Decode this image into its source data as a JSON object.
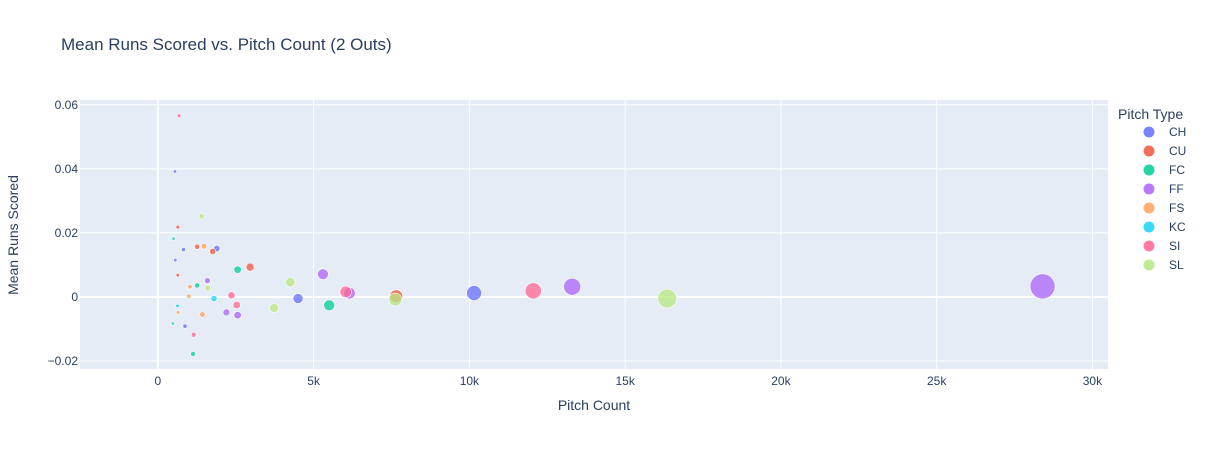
{
  "chart_data": {
    "type": "scatter",
    "title": "Mean Runs Scored vs. Pitch Count (2 Outs)",
    "xlabel": "Pitch Count",
    "ylabel": "Mean Runs Scored",
    "xlim": [
      -2500,
      30500
    ],
    "ylim": [
      -0.0225,
      0.0615
    ],
    "x_ticks": [
      0,
      5000,
      10000,
      15000,
      20000,
      25000,
      30000
    ],
    "x_tick_labels": [
      "0",
      "5k",
      "10k",
      "15k",
      "20k",
      "25k",
      "30k"
    ],
    "y_ticks": [
      -0.02,
      0,
      0.02,
      0.04,
      0.06
    ],
    "y_tick_labels": [
      "−0.02",
      "0",
      "0.02",
      "0.04",
      "0.06"
    ],
    "grid": true,
    "legend_title": "Pitch Type",
    "legend_position": "right",
    "marker_size_encodes": "Pitch Count",
    "series": [
      {
        "name": "CH",
        "color": "#636efa",
        "points": [
          {
            "x": 550,
            "y": 0.0392
          },
          {
            "x": 820,
            "y": 0.0148
          },
          {
            "x": 560,
            "y": 0.0115
          },
          {
            "x": 870,
            "y": -0.0091
          },
          {
            "x": 1890,
            "y": 0.0151
          },
          {
            "x": 4500,
            "y": -0.0005
          },
          {
            "x": 10150,
            "y": 0.0012
          }
        ]
      },
      {
        "name": "CU",
        "color": "#EF553B",
        "points": [
          {
            "x": 640,
            "y": 0.0218
          },
          {
            "x": 640,
            "y": 0.0068
          },
          {
            "x": 1260,
            "y": 0.0157
          },
          {
            "x": 1760,
            "y": 0.0142
          },
          {
            "x": 2960,
            "y": 0.0093
          },
          {
            "x": 7650,
            "y": 0.0002
          }
        ]
      },
      {
        "name": "FC",
        "color": "#00cc96",
        "points": [
          {
            "x": 500,
            "y": 0.0182
          },
          {
            "x": 480,
            "y": -0.0083
          },
          {
            "x": 1130,
            "y": -0.0178
          },
          {
            "x": 1260,
            "y": 0.0036
          },
          {
            "x": 2560,
            "y": 0.0085
          },
          {
            "x": 5500,
            "y": -0.0026
          }
        ]
      },
      {
        "name": "FF",
        "color": "#ab63fa",
        "points": [
          {
            "x": 1590,
            "y": 0.0051
          },
          {
            "x": 2200,
            "y": -0.0048
          },
          {
            "x": 2560,
            "y": -0.0057
          },
          {
            "x": 5300,
            "y": 0.0071
          },
          {
            "x": 6150,
            "y": 0.0012
          },
          {
            "x": 13300,
            "y": 0.0032
          },
          {
            "x": 28400,
            "y": 0.0033
          }
        ]
      },
      {
        "name": "FS",
        "color": "#FFA15A",
        "points": [
          {
            "x": 650,
            "y": -0.0048
          },
          {
            "x": 990,
            "y": 0.0002
          },
          {
            "x": 1030,
            "y": 0.0032
          },
          {
            "x": 1430,
            "y": -0.0055
          },
          {
            "x": 1480,
            "y": 0.0158
          }
        ]
      },
      {
        "name": "KC",
        "color": "#19d3f3",
        "points": [
          {
            "x": 630,
            "y": -0.0028
          },
          {
            "x": 1800,
            "y": -0.0005
          }
        ]
      },
      {
        "name": "SI",
        "color": "#FF6692",
        "points": [
          {
            "x": 680,
            "y": 0.0566
          },
          {
            "x": 1150,
            "y": -0.0118
          },
          {
            "x": 2360,
            "y": 0.0005
          },
          {
            "x": 2530,
            "y": -0.0025
          },
          {
            "x": 6030,
            "y": 0.0016
          },
          {
            "x": 12050,
            "y": 0.0019
          }
        ]
      },
      {
        "name": "SL",
        "color": "#B6E880",
        "points": [
          {
            "x": 1400,
            "y": 0.0252
          },
          {
            "x": 1600,
            "y": 0.0028
          },
          {
            "x": 3730,
            "y": -0.0035
          },
          {
            "x": 4250,
            "y": 0.0046
          },
          {
            "x": 7620,
            "y": -0.0008
          },
          {
            "x": 16350,
            "y": -0.0005
          }
        ]
      }
    ]
  }
}
